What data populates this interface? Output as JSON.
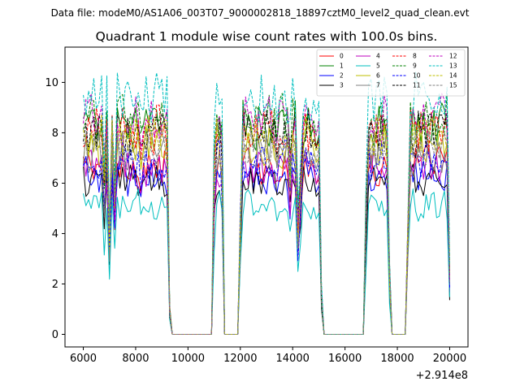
{
  "figure": {
    "suptitle": "Data file: modeM0/AS1A06_003T07_9000002818_18897cztM0_level2_quad_clean.evt"
  },
  "chart_data": {
    "type": "line",
    "title": "Quadrant 1 module wise count rates with 100.0s bins.",
    "xlabel": "",
    "ylabel": "",
    "x_offset_label": "+2.914e8",
    "xlim": [
      5300,
      20700
    ],
    "ylim": [
      -0.5,
      11.4
    ],
    "xticks": [
      6000,
      8000,
      10000,
      12000,
      14000,
      16000,
      18000,
      20000
    ],
    "xtick_labels": [
      "6000",
      "8000",
      "10000",
      "12000",
      "14000",
      "16000",
      "18000",
      "20000"
    ],
    "yticks": [
      0,
      2,
      4,
      6,
      8,
      10
    ],
    "ytick_labels": [
      "0",
      "2",
      "4",
      "6",
      "8",
      "10"
    ],
    "bin_width": 100,
    "legend_location": "upper-right",
    "legend_columns": 4,
    "segments": [
      {
        "start": 6000,
        "end": 9300,
        "level": "on"
      },
      {
        "start": 9400,
        "end": 10900,
        "level": "zero"
      },
      {
        "start": 11000,
        "end": 11300,
        "level": "on"
      },
      {
        "start": 11400,
        "end": 11900,
        "level": "zero"
      },
      {
        "start": 12000,
        "end": 15100,
        "level": "on"
      },
      {
        "start": 15200,
        "end": 16700,
        "level": "zero"
      },
      {
        "start": 16800,
        "end": 17700,
        "level": "on"
      },
      {
        "start": 17800,
        "end": 18300,
        "level": "zero"
      },
      {
        "start": 18400,
        "end": 20000,
        "level": "on"
      }
    ],
    "dips": [
      {
        "x": 6800,
        "factor": 0.72
      },
      {
        "x": 7000,
        "factor": 0.45
      },
      {
        "x": 7200,
        "factor": 0.68
      },
      {
        "x": 8200,
        "factor": 0.85
      },
      {
        "x": 9300,
        "factor": 0.12
      },
      {
        "x": 11000,
        "factor": 0.78
      },
      {
        "x": 11300,
        "factor": 0.88
      },
      {
        "x": 12000,
        "factor": 0.55
      },
      {
        "x": 13900,
        "factor": 0.85
      },
      {
        "x": 14200,
        "factor": 0.52
      },
      {
        "x": 14300,
        "factor": 0.65
      },
      {
        "x": 15100,
        "factor": 0.2
      },
      {
        "x": 16800,
        "factor": 0.6
      },
      {
        "x": 17700,
        "factor": 0.3
      },
      {
        "x": 18400,
        "factor": 0.5
      },
      {
        "x": 20000,
        "factor": 0.28
      }
    ],
    "series": [
      {
        "name": "0",
        "color": "#ff0000",
        "dash": false,
        "base": 6.7
      },
      {
        "name": "1",
        "color": "#008000",
        "dash": false,
        "base": 8.3
      },
      {
        "name": "2",
        "color": "#0000ff",
        "dash": false,
        "base": 6.3
      },
      {
        "name": "3",
        "color": "#000000",
        "dash": false,
        "base": 6.1
      },
      {
        "name": "4",
        "color": "#bf00bf",
        "dash": false,
        "base": 6.6
      },
      {
        "name": "5",
        "color": "#00bfbf",
        "dash": false,
        "base": 5.1
      },
      {
        "name": "6",
        "color": "#bfbf00",
        "dash": false,
        "base": 7.5
      },
      {
        "name": "7",
        "color": "#808080",
        "dash": false,
        "base": 7.2
      },
      {
        "name": "8",
        "color": "#ff0000",
        "dash": true,
        "base": 8.1
      },
      {
        "name": "9",
        "color": "#008000",
        "dash": true,
        "base": 8.6
      },
      {
        "name": "10",
        "color": "#0000ff",
        "dash": true,
        "base": 6.9
      },
      {
        "name": "11",
        "color": "#000000",
        "dash": true,
        "base": 8.0
      },
      {
        "name": "12",
        "color": "#bf00bf",
        "dash": true,
        "base": 8.5
      },
      {
        "name": "13",
        "color": "#00bfbf",
        "dash": true,
        "base": 9.4
      },
      {
        "name": "14",
        "color": "#bfbf00",
        "dash": true,
        "base": 7.8
      },
      {
        "name": "15",
        "color": "#808080",
        "dash": true,
        "base": 7.4
      }
    ]
  }
}
